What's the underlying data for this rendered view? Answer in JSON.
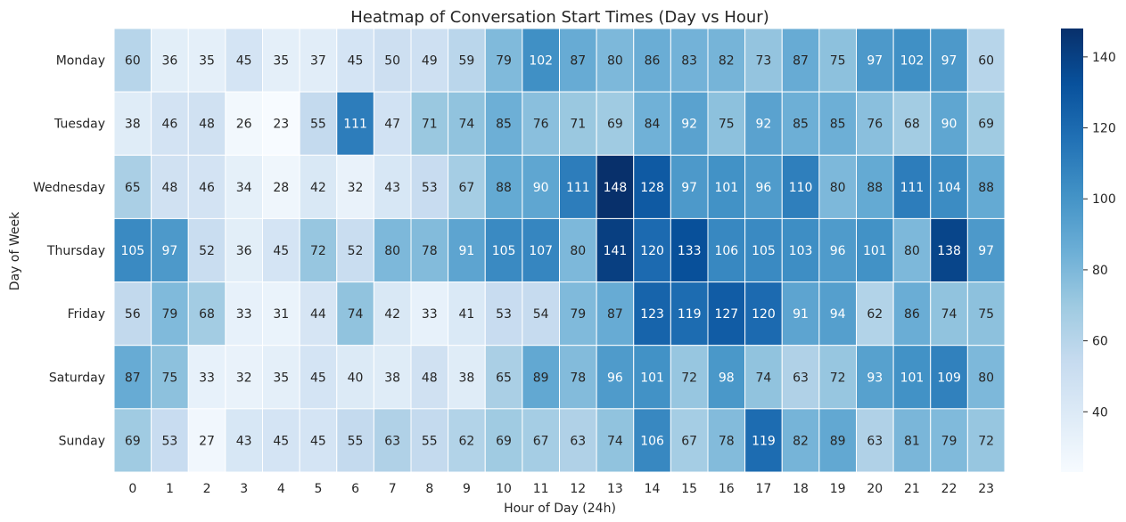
{
  "chart_data": {
    "type": "heatmap",
    "title": "Heatmap of Conversation Start Times (Day vs Hour)",
    "xlabel": "Hour of Day (24h)",
    "ylabel": "Day of Week",
    "x_categories": [
      "0",
      "1",
      "2",
      "3",
      "4",
      "5",
      "6",
      "7",
      "8",
      "9",
      "10",
      "11",
      "12",
      "13",
      "14",
      "15",
      "16",
      "17",
      "18",
      "19",
      "20",
      "21",
      "22",
      "23"
    ],
    "y_categories": [
      "Monday",
      "Tuesday",
      "Wednesday",
      "Thursday",
      "Friday",
      "Saturday",
      "Sunday"
    ],
    "values": [
      [
        60,
        36,
        35,
        45,
        35,
        37,
        45,
        50,
        49,
        59,
        79,
        102,
        87,
        80,
        86,
        83,
        82,
        73,
        87,
        75,
        97,
        102,
        97,
        60
      ],
      [
        38,
        46,
        48,
        26,
        23,
        55,
        111,
        47,
        71,
        74,
        85,
        76,
        71,
        69,
        84,
        92,
        75,
        92,
        85,
        85,
        76,
        68,
        90,
        69
      ],
      [
        65,
        48,
        46,
        34,
        28,
        42,
        32,
        43,
        53,
        67,
        88,
        90,
        111,
        148,
        128,
        97,
        101,
        96,
        110,
        80,
        88,
        111,
        104,
        88
      ],
      [
        105,
        97,
        52,
        36,
        45,
        72,
        52,
        80,
        78,
        91,
        105,
        107,
        80,
        141,
        120,
        133,
        106,
        105,
        103,
        96,
        101,
        80,
        138,
        97
      ],
      [
        56,
        79,
        68,
        33,
        31,
        44,
        74,
        42,
        33,
        41,
        53,
        54,
        79,
        87,
        123,
        119,
        127,
        120,
        91,
        94,
        62,
        86,
        74,
        75
      ],
      [
        87,
        75,
        33,
        32,
        35,
        45,
        40,
        38,
        48,
        38,
        65,
        89,
        78,
        96,
        101,
        72,
        98,
        74,
        63,
        72,
        93,
        101,
        109,
        80
      ],
      [
        69,
        53,
        27,
        43,
        45,
        45,
        55,
        63,
        55,
        62,
        69,
        67,
        63,
        74,
        106,
        67,
        78,
        119,
        82,
        89,
        63,
        81,
        79,
        72
      ]
    ],
    "colorscale": "Blues",
    "vmin": 23,
    "vmax": 148,
    "colorbar_ticks": [
      "40",
      "60",
      "80",
      "100",
      "120",
      "140"
    ],
    "annotations": true
  }
}
